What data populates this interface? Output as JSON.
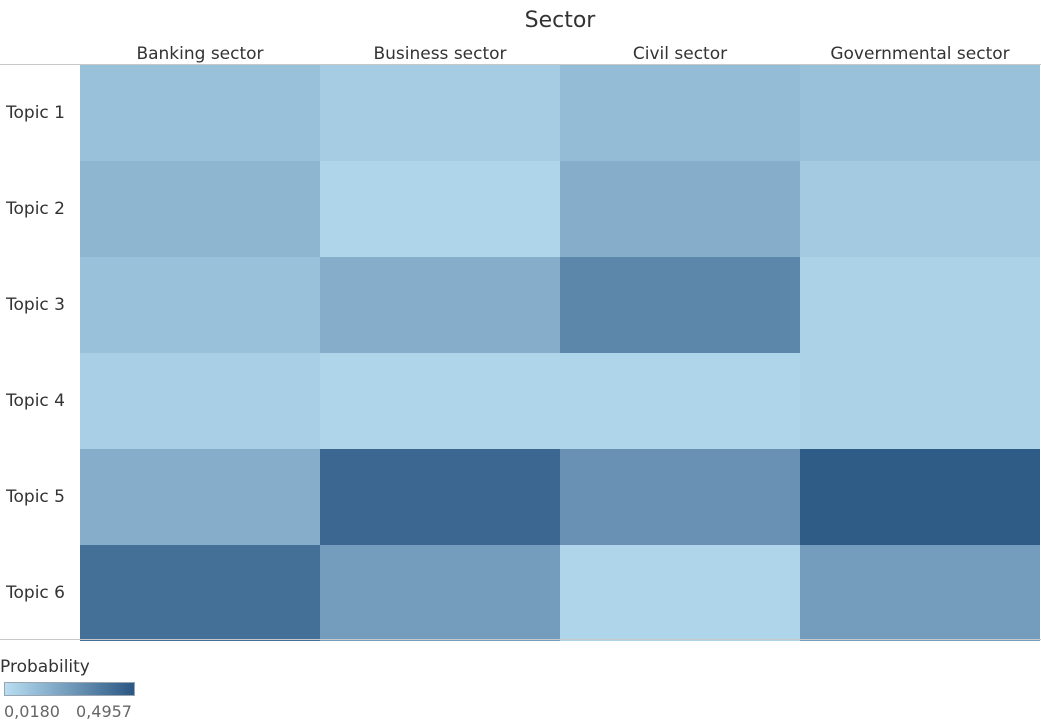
{
  "chart_data": {
    "type": "heatmap",
    "title": "Sector",
    "columns": [
      "Banking sector",
      "Business sector",
      "Civil sector",
      "Governmental sector"
    ],
    "rows": [
      "Topic 1",
      "Topic 2",
      "Topic 3",
      "Topic 4",
      "Topic 5",
      "Topic 6"
    ],
    "values": [
      [
        0.12,
        0.08,
        0.14,
        0.12
      ],
      [
        0.16,
        0.05,
        0.19,
        0.09
      ],
      [
        0.12,
        0.19,
        0.33,
        0.06
      ],
      [
        0.07,
        0.05,
        0.05,
        0.06
      ],
      [
        0.19,
        0.44,
        0.29,
        0.48
      ],
      [
        0.41,
        0.25,
        0.05,
        0.25
      ]
    ],
    "legend": {
      "title": "Probability",
      "min": 0.018,
      "max": 0.4957,
      "min_label": "0,0180",
      "max_label": "0,4957",
      "color_low": "#b9def2",
      "color_high": "#2a5783"
    }
  }
}
